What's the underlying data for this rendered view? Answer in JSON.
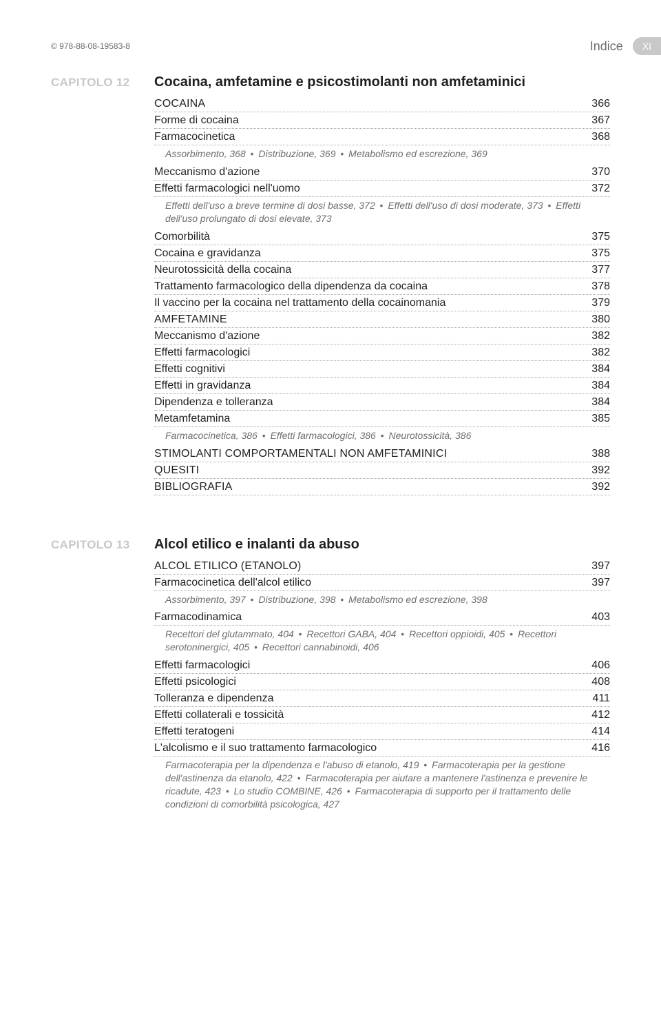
{
  "header": {
    "isbn": "© 978-88-08-19583-8",
    "section": "Indice",
    "page_roman": "XI"
  },
  "chapters": [
    {
      "label": "CAPITOLO 12",
      "title": "Cocaina, amfetamine e psicostimolanti non amfetaminici",
      "items": [
        {
          "type": "row",
          "caps": true,
          "label": "COCAINA",
          "page": "366"
        },
        {
          "type": "row",
          "label": "Forme di cocaina",
          "page": "367"
        },
        {
          "type": "row",
          "label": "Farmacocinetica",
          "page": "368"
        },
        {
          "type": "sub",
          "parts": [
            "Assorbimento, 368",
            "Distribuzione, 369",
            "Metabolismo ed escrezione, 369"
          ]
        },
        {
          "type": "row",
          "label": "Meccanismo d'azione",
          "page": "370"
        },
        {
          "type": "row",
          "label": "Effetti farmacologici nell'uomo",
          "page": "372"
        },
        {
          "type": "sub",
          "parts": [
            "Effetti dell'uso a breve termine di dosi basse, 372",
            "Effetti dell'uso di dosi moderate, 373",
            "Effetti dell'uso prolungato di dosi elevate, 373"
          ]
        },
        {
          "type": "row",
          "label": "Comorbilità",
          "page": "375"
        },
        {
          "type": "row",
          "label": "Cocaina e gravidanza",
          "page": "375"
        },
        {
          "type": "row",
          "label": "Neurotossicità della cocaina",
          "page": "377"
        },
        {
          "type": "row",
          "label": "Trattamento farmacologico della dipendenza da cocaina",
          "page": "378"
        },
        {
          "type": "row",
          "label": "Il vaccino per la cocaina nel trattamento della cocainomania",
          "page": "379"
        },
        {
          "type": "row",
          "caps": true,
          "label": "AMFETAMINE",
          "page": "380"
        },
        {
          "type": "row",
          "label": "Meccanismo d'azione",
          "page": "382"
        },
        {
          "type": "row",
          "label": "Effetti farmacologici",
          "page": "382"
        },
        {
          "type": "row",
          "label": "Effetti cognitivi",
          "page": "384"
        },
        {
          "type": "row",
          "label": "Effetti in gravidanza",
          "page": "384"
        },
        {
          "type": "row",
          "label": "Dipendenza e tolleranza",
          "page": "384"
        },
        {
          "type": "row",
          "label": "Metamfetamina",
          "page": "385"
        },
        {
          "type": "sub",
          "parts": [
            "Farmacocinetica, 386",
            "Effetti farmacologici, 386",
            "Neurotossicità, 386"
          ]
        },
        {
          "type": "row",
          "caps": true,
          "label": "STIMOLANTI COMPORTAMENTALI NON AMFETAMINICI",
          "page": "388"
        },
        {
          "type": "row",
          "caps": true,
          "label": "QUESITI",
          "page": "392"
        },
        {
          "type": "row",
          "caps": true,
          "label": "BIBLIOGRAFIA",
          "page": "392"
        }
      ]
    },
    {
      "label": "CAPITOLO 13",
      "title": "Alcol etilico e inalanti da abuso",
      "items": [
        {
          "type": "row",
          "caps": true,
          "label": "ALCOL ETILICO (ETANOLO)",
          "page": "397"
        },
        {
          "type": "row",
          "label": "Farmacocinetica dell'alcol etilico",
          "page": "397"
        },
        {
          "type": "sub",
          "parts": [
            "Assorbimento, 397",
            "Distribuzione, 398",
            "Metabolismo ed escrezione, 398"
          ]
        },
        {
          "type": "row",
          "label": "Farmacodinamica",
          "page": "403"
        },
        {
          "type": "sub",
          "parts": [
            "Recettori del glutammato, 404",
            "Recettori GABA, 404",
            "Recettori oppioidi, 405",
            "Recettori serotoninergici, 405",
            "Recettori cannabinoidi, 406"
          ]
        },
        {
          "type": "row",
          "label": "Effetti farmacologici",
          "page": "406"
        },
        {
          "type": "row",
          "label": "Effetti psicologici",
          "page": "408"
        },
        {
          "type": "row",
          "label": "Tolleranza e dipendenza",
          "page": "411"
        },
        {
          "type": "row",
          "label": "Effetti collaterali e tossicità",
          "page": "412"
        },
        {
          "type": "row",
          "label": "Effetti teratogeni",
          "page": "414"
        },
        {
          "type": "row",
          "label": "L'alcolismo e il suo trattamento farmacologico",
          "page": "416"
        },
        {
          "type": "sub",
          "parts": [
            "Farmacoterapia per la dipendenza e l'abuso di etanolo, 419",
            "Farmacoterapia per la gestione dell'astinenza da etanolo, 422",
            "Farmacoterapia per aiutare a mantenere l'astinenza e prevenire le ricadute, 423",
            "Lo studio COMBINE, 426",
            "Farmacoterapia di supporto per il trattamento delle condizioni di comorbilità psicologica, 427"
          ]
        }
      ]
    }
  ]
}
